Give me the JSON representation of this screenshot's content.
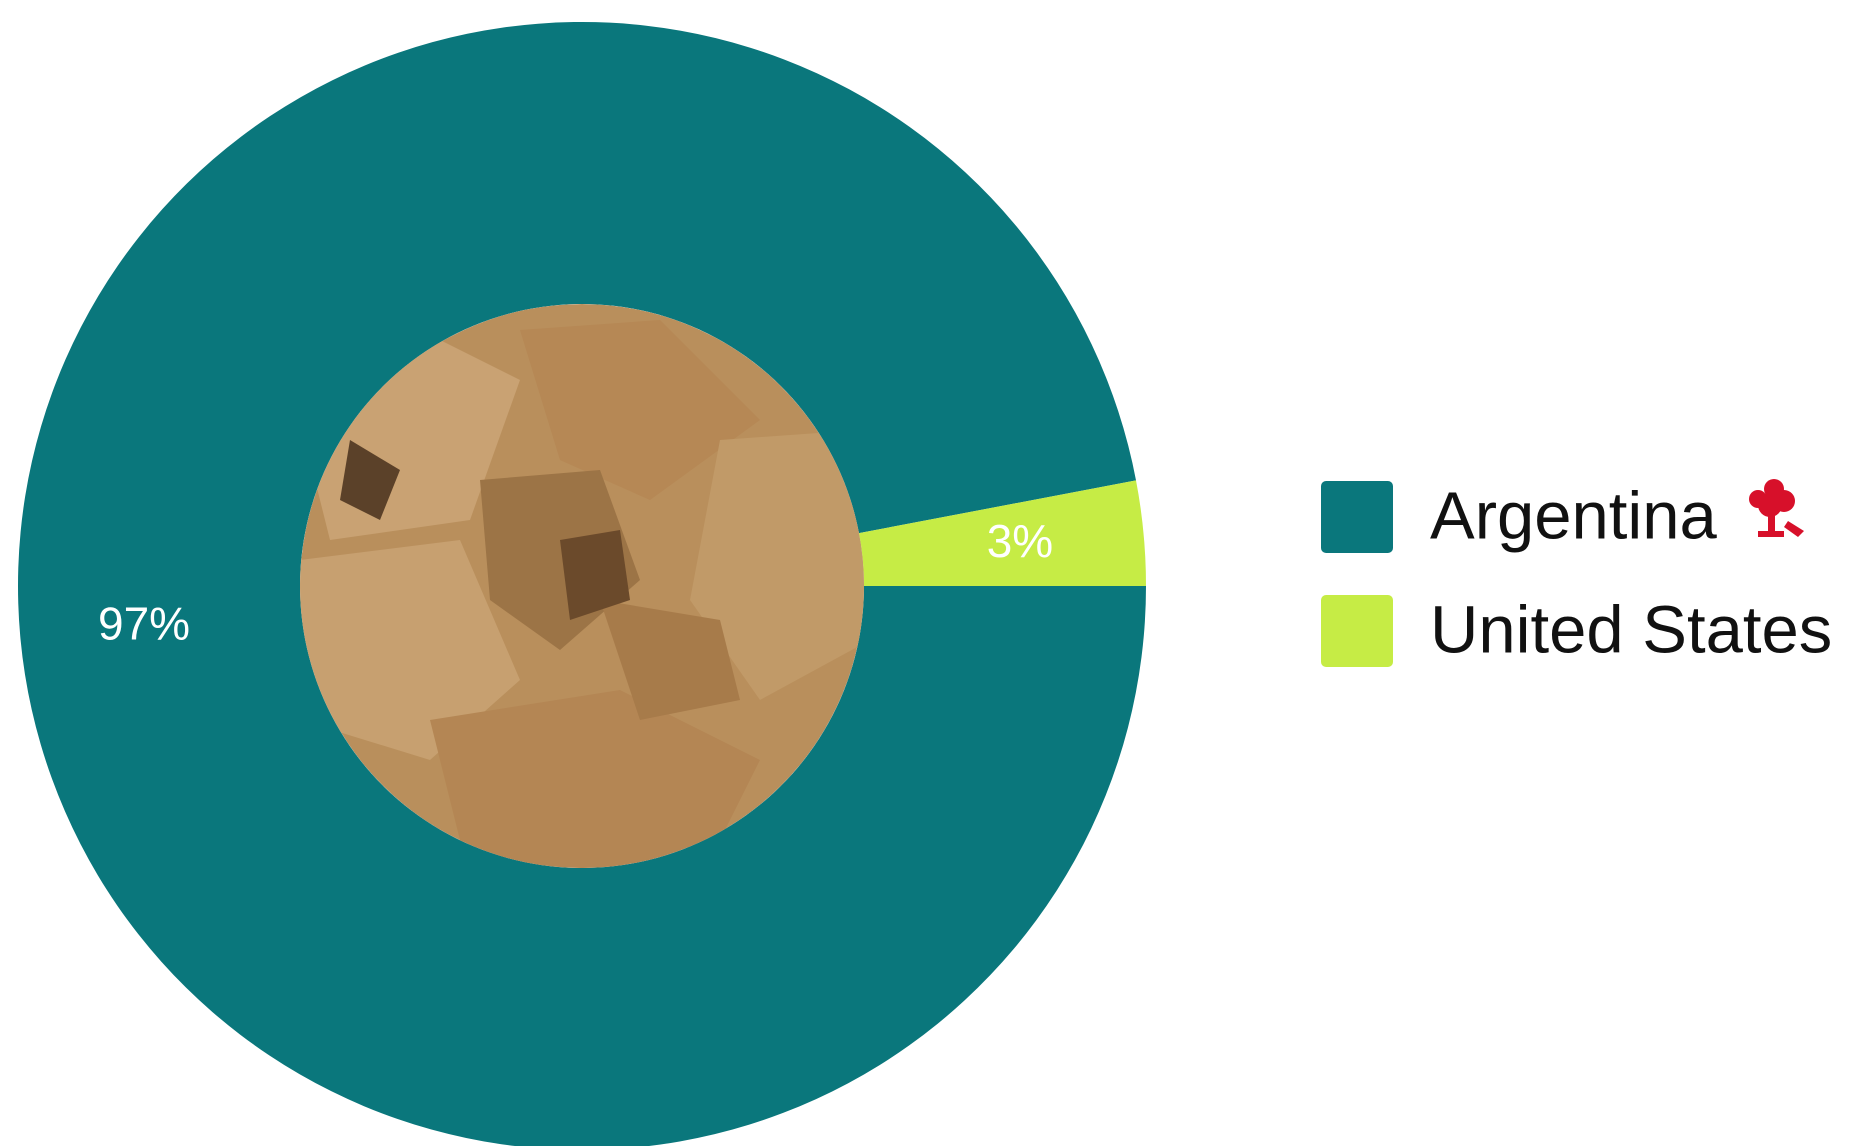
{
  "chart_data": {
    "type": "donut",
    "categories": [
      "Argentina",
      "United States"
    ],
    "values": [
      97,
      3
    ],
    "value_labels": [
      "97%",
      "3%"
    ],
    "colors": [
      "#0a777c",
      "#c6ec45"
    ]
  }
}
